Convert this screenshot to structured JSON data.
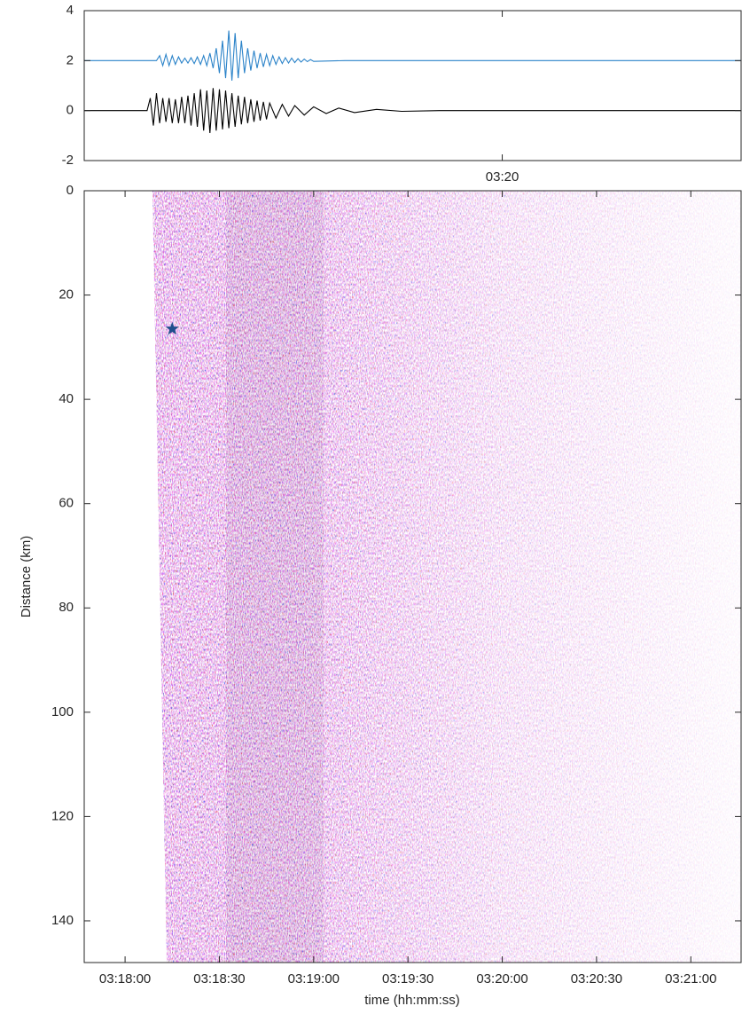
{
  "chart_data": [
    {
      "type": "line",
      "xlim": [
        11867,
        12076
      ],
      "xticks": [
        {
          "value": 12000,
          "label": "03:20"
        }
      ],
      "ylim": [
        -2,
        4
      ],
      "yticks": [
        -2,
        0,
        2,
        4
      ],
      "series": [
        {
          "color": "#2b83c9",
          "x": [
            11867,
            11890,
            11891,
            11892,
            11893,
            11894,
            11895,
            11896,
            11897,
            11898,
            11899,
            11900,
            11901,
            11902,
            11903,
            11904,
            11905,
            11906,
            11907,
            11908,
            11909,
            11910,
            11911,
            11912,
            11913,
            11914,
            11915,
            11916,
            11917,
            11918,
            11919,
            11920,
            11921,
            11922,
            11923,
            11924,
            11925,
            11926,
            11927,
            11928,
            11929,
            11930,
            11931,
            11932,
            11933,
            11934,
            11935,
            11936,
            11937,
            11938,
            11939,
            11940,
            11950,
            12076
          ],
          "values": [
            2,
            2,
            2.2,
            1.8,
            2.25,
            1.8,
            2.2,
            1.85,
            2.15,
            1.9,
            2.1,
            1.9,
            2.12,
            1.88,
            2.15,
            1.85,
            2.2,
            1.8,
            2.3,
            1.7,
            2.5,
            1.5,
            2.8,
            1.3,
            3.2,
            1.2,
            3.1,
            1.3,
            2.8,
            1.5,
            2.5,
            1.6,
            2.4,
            1.7,
            2.3,
            1.75,
            2.25,
            1.8,
            2.2,
            1.85,
            2.15,
            1.88,
            2.12,
            1.9,
            2.1,
            1.92,
            2.08,
            1.94,
            2.06,
            1.96,
            2.04,
            1.97,
            2,
            2
          ]
        },
        {
          "color": "#000000",
          "x": [
            11867,
            11887,
            11888,
            11889,
            11890,
            11891,
            11892,
            11893,
            11894,
            11895,
            11896,
            11897,
            11898,
            11899,
            11900,
            11901,
            11902,
            11903,
            11904,
            11905,
            11906,
            11907,
            11908,
            11909,
            11910,
            11911,
            11912,
            11913,
            11914,
            11915,
            11916,
            11917,
            11918,
            11919,
            11920,
            11921,
            11922,
            11923,
            11924,
            11925,
            11926,
            11928,
            11930,
            11932,
            11934,
            11937,
            11940,
            11944,
            11948,
            11953,
            11960,
            11968,
            11980,
            12076
          ],
          "values": [
            0,
            0,
            0.5,
            -0.6,
            0.7,
            -0.5,
            0.5,
            -0.45,
            0.5,
            -0.5,
            0.45,
            -0.5,
            0.55,
            -0.5,
            0.6,
            -0.6,
            0.7,
            -0.65,
            0.85,
            -0.8,
            0.8,
            -0.9,
            0.9,
            -0.8,
            0.85,
            -0.75,
            0.8,
            -0.7,
            0.7,
            -0.65,
            0.6,
            -0.55,
            0.55,
            -0.5,
            0.45,
            -0.45,
            0.4,
            -0.4,
            0.35,
            -0.35,
            0.3,
            -0.3,
            0.25,
            -0.22,
            0.2,
            -0.18,
            0.15,
            -0.12,
            0.1,
            -0.08,
            0.05,
            -0.03,
            0,
            0
          ]
        }
      ]
    },
    {
      "type": "image",
      "x_label": "time (hh:mm:ss)",
      "y_label": "Distance (km)",
      "xlim": [
        11867,
        12076
      ],
      "xticks": [
        {
          "value": 11880,
          "label": "03:18:00"
        },
        {
          "value": 11910,
          "label": "03:18:30"
        },
        {
          "value": 11940,
          "label": "03:19:00"
        },
        {
          "value": 11970,
          "label": "03:19:30"
        },
        {
          "value": 12000,
          "label": "03:20:00"
        },
        {
          "value": 12030,
          "label": "03:20:30"
        },
        {
          "value": 12060,
          "label": "03:21:00"
        }
      ],
      "ylim": [
        0,
        148
      ],
      "y_reversed": true,
      "yticks": [
        0,
        20,
        40,
        60,
        80,
        100,
        120,
        140
      ],
      "series": [
        {
          "marker": "star",
          "color": "#1f4e8c",
          "x": [
            11895
          ],
          "values": [
            26.5
          ]
        }
      ]
    }
  ]
}
